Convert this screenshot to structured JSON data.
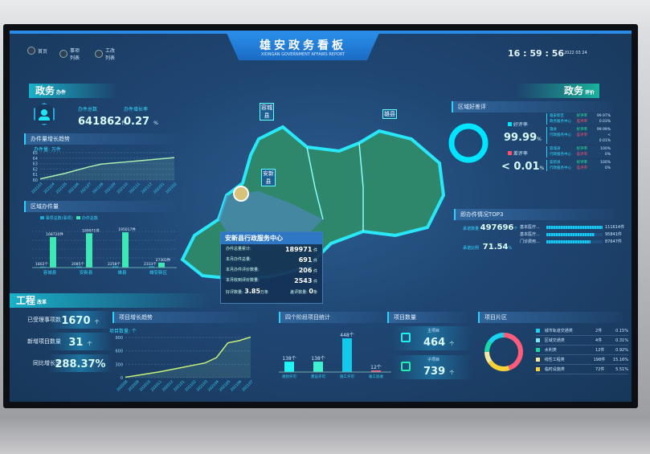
{
  "header": {
    "title": "雄安政务看板",
    "subtitle": "XIONGAN GOVERNMENT AFFAIRS REPORT",
    "time": "16 : 59 : 56",
    "date": "2022 03 24",
    "nav": [
      {
        "label": "首页",
        "icon": "monitor-icon"
      },
      {
        "label": "事项列表",
        "icon": "list-icon"
      },
      {
        "label": "工改列表",
        "icon": "document-icon"
      }
    ]
  },
  "gov": {
    "heading": "政务",
    "heading_sub": "办件",
    "total_label": "办件总数",
    "total": "641862",
    "total_unit": "件",
    "rate_label": "办件增长率",
    "rate": "0.27",
    "rate_unit": "%"
  },
  "chart_data": [
    {
      "type": "line",
      "title": "办件量增长趋势",
      "ylabel": "办件量: 万件",
      "ylim": [
        60,
        65
      ],
      "yticks": [
        60,
        61,
        62,
        63,
        64,
        65
      ],
      "x": [
        "202103",
        "202104",
        "202105",
        "202106",
        "202107",
        "202108",
        "202109",
        "202110",
        "202111",
        "202112",
        "202201",
        "202202"
      ],
      "values": [
        60.2,
        60.7,
        61.2,
        61.8,
        62.4,
        62.9,
        63.1,
        63.3,
        63.5,
        63.7,
        63.9,
        64.1
      ],
      "color": "#a8f0b0"
    },
    {
      "type": "bar",
      "title": "区域办件量",
      "categories": [
        "容城县",
        "安新县",
        "雄县",
        "雄安新区"
      ],
      "series": [
        {
          "name": "事项总数(事项)",
          "values": [
            1802,
            2085,
            2258,
            2333
          ],
          "labels": [
            "1802个",
            "2085个",
            "2258个",
            "2333个"
          ],
          "color": "#1aa8d8"
        },
        {
          "name": "办件总数",
          "values": [
            168720,
            189971,
            195017,
            27302
          ],
          "labels": [
            "168720件",
            "189971件",
            "195017件",
            "27302件"
          ],
          "color": "#3ee8b5"
        }
      ]
    },
    {
      "type": "line",
      "title": "项目增长趋势",
      "ylabel": "项目数量: 个",
      "ylim": [
        0,
        900
      ],
      "yticks": [
        0,
        300,
        600,
        900
      ],
      "x": [
        "202008",
        "202009",
        "202010",
        "202011",
        "202012",
        "202101",
        "202102",
        "202103",
        "202104",
        "202105",
        "202106",
        "202107"
      ],
      "values": [
        10,
        50,
        90,
        130,
        180,
        230,
        280,
        330,
        450,
        780,
        830,
        910
      ],
      "color": "#c8f07a"
    },
    {
      "type": "bar",
      "title": "四个阶段项目统计",
      "categories": [
        "规划许可",
        "建设许可",
        "施工许可",
        "竣工验收"
      ],
      "values": [
        138,
        138,
        448,
        12
      ],
      "labels": [
        "138个",
        "138个",
        "448个",
        "12个"
      ],
      "colors": [
        "#1ff3f3",
        "#3ef0d0",
        "#13c8e8",
        "#ff5b7a"
      ]
    },
    {
      "type": "pie",
      "title": "项目片区",
      "categories": [
        "城市轨道交通类",
        "区域交通类",
        "水利类",
        "线性工程类",
        "临时设施类"
      ],
      "counts": [
        "2件",
        "4件",
        "12件",
        "198件",
        "72件"
      ],
      "percents": [
        "0.15%",
        "0.31%",
        "0.92%",
        "15.16%",
        "5.51%"
      ],
      "colors": [
        "#19d4f0",
        "#7ce7f0",
        "#19d8a8",
        "#f5e9a0",
        "#f7d23a"
      ]
    }
  ],
  "map": {
    "labels": [
      "容城县",
      "安新县",
      "雄县"
    ],
    "popup": {
      "title": "安新县行政服务中心",
      "rows": [
        {
          "k": "办件总量累计:",
          "v": "189971",
          "u": "件"
        },
        {
          "k": "本月办件总量:",
          "v": "691",
          "u": "件"
        },
        {
          "k": "本月办件评价数量:",
          "v": "206",
          "u": "件"
        },
        {
          "k": "本月收到评价数量:",
          "v": "2543",
          "u": "件"
        }
      ],
      "good_label": "好评数量:",
      "good": "3.85",
      "good_unit": "万条",
      "bad_label": "差评数量:",
      "bad": "0",
      "bad_unit": "条"
    }
  },
  "eval": {
    "heading": "政务",
    "heading_sub": "评价",
    "section": "区域好差评",
    "good_label": "好评率",
    "good": "99.99",
    "bad_label": "差评率",
    "bad": "< 0.01",
    "pct": "%",
    "good_color": "#00e5ff",
    "bad_color": "#ff4d6a",
    "table": [
      {
        "name": "雄安新区",
        "center": "政务服务中心",
        "good_label": "好评率",
        "good": "99.97%",
        "bad_label": "差评率",
        "bad": "0.03%"
      },
      {
        "name": "雄县",
        "center": "行政服务中心",
        "good_label": "好评率",
        "good": "99.99%",
        "bad_label": "差评率",
        "bad": "< 0.01%"
      },
      {
        "name": "容城县",
        "center": "行政服务中心",
        "good_label": "好评率",
        "good": "100%",
        "bad_label": "差评率",
        "bad": "0%"
      },
      {
        "name": "安新县",
        "center": "行政服务中心",
        "good_label": "好评率",
        "good": "100%",
        "bad_label": "差评率",
        "bad": "0%"
      }
    ]
  },
  "top3": {
    "section": "即办件情况TOP3",
    "count_label": "承诺数量",
    "count": "497696",
    "count_unit": "个",
    "ratio_label": "承诺比例",
    "ratio": "71.54",
    "ratio_unit": "%",
    "items": [
      {
        "name": "基本医疗...",
        "value": "111614件",
        "fill": 1.0
      },
      {
        "name": "基本医疗...",
        "value": "95841件",
        "fill": 0.86
      },
      {
        "name": "门诊费用...",
        "value": "87647件",
        "fill": 0.79
      }
    ]
  },
  "eng": {
    "heading": "工程",
    "heading_sub": "改革",
    "stats": [
      {
        "label": "已受理事项数",
        "value": "1670",
        "unit": "个"
      },
      {
        "label": "新增项目数量",
        "value": "31",
        "unit": "个"
      },
      {
        "label": "同比增长率",
        "value": "288.37%",
        "unit": ""
      }
    ]
  },
  "projects": {
    "section": "项目数量",
    "main_label": "主项目",
    "main": "464",
    "sub_label": "子项目",
    "sub": "739",
    "unit": "个"
  }
}
